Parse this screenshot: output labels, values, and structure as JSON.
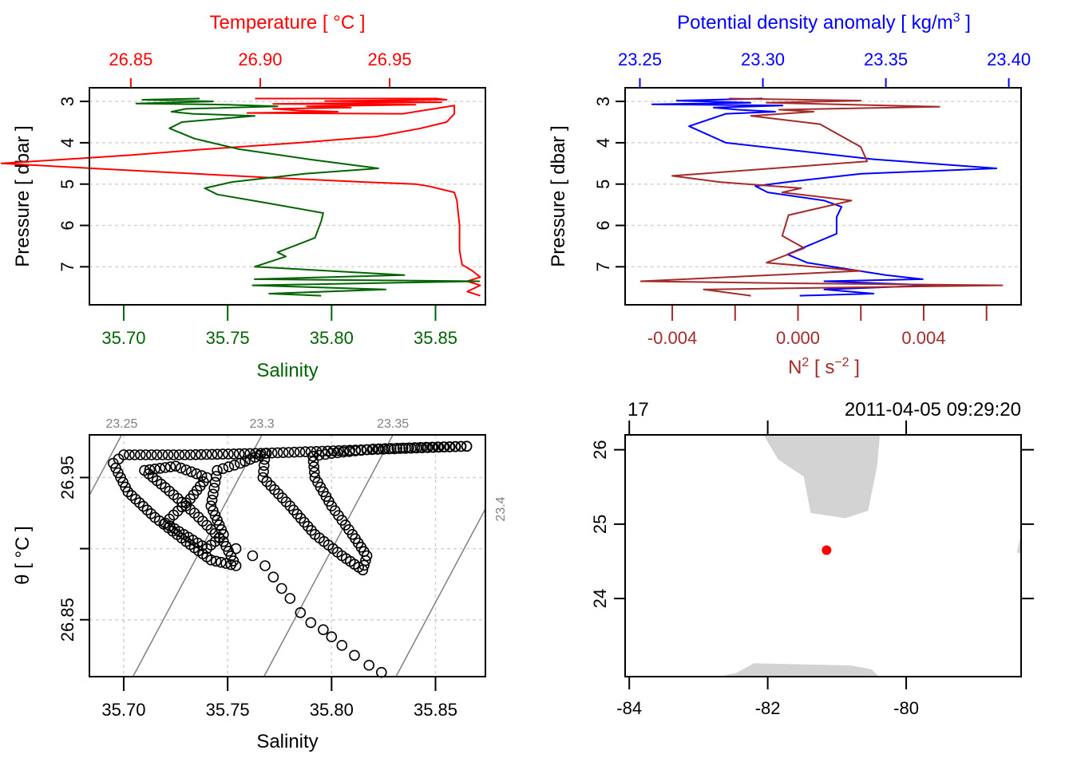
{
  "chart_data": [
    {
      "id": "ts_profile",
      "type": "line",
      "top_axis": {
        "label": "Temperature [ °C ]",
        "color": "#ff0000",
        "ticks": [
          26.85,
          26.9,
          26.95
        ],
        "tick_labels": [
          "26.85",
          "26.90",
          "26.95"
        ],
        "range": [
          26.834,
          26.987
        ]
      },
      "bottom_axis": {
        "label": "Salinity",
        "color": "#006400",
        "ticks": [
          35.7,
          35.75,
          35.8,
          35.85
        ],
        "tick_labels": [
          "35.70",
          "35.75",
          "35.80",
          "35.85"
        ],
        "range": [
          35.6835,
          35.874
        ]
      },
      "left_axis": {
        "label": "Pressure [ dbar ]",
        "ticks": [
          3,
          4,
          5,
          6,
          7
        ],
        "tick_labels": [
          "3",
          "4",
          "5",
          "6",
          "7"
        ],
        "range": [
          7.92,
          2.67
        ],
        "reversed": true
      },
      "grid": true,
      "series": [
        {
          "name": "Temperature",
          "color": "#ff0000",
          "points": [
            [
              26.898,
              2.93
            ],
            [
              26.968,
              2.93
            ],
            [
              26.972,
              2.96
            ],
            [
              26.925,
              2.99
            ],
            [
              26.97,
              3.02
            ],
            [
              26.905,
              3.06
            ],
            [
              26.96,
              3.08
            ],
            [
              26.918,
              3.12
            ],
            [
              26.935,
              3.15
            ],
            [
              26.905,
              3.18
            ],
            [
              26.915,
              3.22
            ],
            [
              26.93,
              3.25
            ],
            [
              26.895,
              3.28
            ],
            [
              26.955,
              3.3
            ],
            [
              26.975,
              3.1
            ],
            [
              26.975,
              3.3
            ],
            [
              26.972,
              3.5
            ],
            [
              26.962,
              3.65
            ],
            [
              26.945,
              3.85
            ],
            [
              26.915,
              4.0
            ],
            [
              26.88,
              4.15
            ],
            [
              26.85,
              4.3
            ],
            [
              26.8,
              4.5
            ],
            [
              26.838,
              4.63
            ],
            [
              26.86,
              4.7
            ],
            [
              26.905,
              4.85
            ],
            [
              26.94,
              4.95
            ],
            [
              26.96,
              5.0
            ],
            [
              26.965,
              5.05
            ],
            [
              26.975,
              5.2
            ],
            [
              26.976,
              5.4
            ],
            [
              26.977,
              6.0
            ],
            [
              26.977,
              6.6
            ],
            [
              26.978,
              6.95
            ],
            [
              26.982,
              7.1
            ],
            [
              26.985,
              7.25
            ],
            [
              26.98,
              7.35
            ],
            [
              26.985,
              7.45
            ],
            [
              26.98,
              7.6
            ],
            [
              26.985,
              7.7
            ]
          ]
        },
        {
          "name": "Salinity",
          "color": "#006400",
          "points": [
            [
              35.7365,
              2.93
            ],
            [
              35.709,
              2.96
            ],
            [
              35.743,
              3.0
            ],
            [
              35.706,
              3.05
            ],
            [
              35.75,
              3.08
            ],
            [
              35.774,
              3.12
            ],
            [
              35.73,
              3.18
            ],
            [
              35.723,
              3.25
            ],
            [
              35.733,
              3.3
            ],
            [
              35.763,
              3.35
            ],
            [
              35.728,
              3.5
            ],
            [
              35.722,
              3.65
            ],
            [
              35.734,
              3.9
            ],
            [
              35.755,
              4.15
            ],
            [
              35.789,
              4.4
            ],
            [
              35.8225,
              4.62
            ],
            [
              35.787,
              4.75
            ],
            [
              35.752,
              4.95
            ],
            [
              35.739,
              5.1
            ],
            [
              35.745,
              5.25
            ],
            [
              35.768,
              5.45
            ],
            [
              35.796,
              5.7
            ],
            [
              35.795,
              5.9
            ],
            [
              35.792,
              6.3
            ],
            [
              35.774,
              6.65
            ],
            [
              35.778,
              6.75
            ],
            [
              35.763,
              7.0
            ],
            [
              35.835,
              7.2
            ],
            [
              35.763,
              7.3
            ],
            [
              35.871,
              7.35
            ],
            [
              35.762,
              7.45
            ],
            [
              35.826,
              7.55
            ],
            [
              35.77,
              7.65
            ],
            [
              35.795,
              7.7
            ]
          ]
        }
      ]
    },
    {
      "id": "density_n2_profile",
      "type": "line",
      "top_axis": {
        "label": "Potential density anomaly [ kg/m³ ]",
        "color": "#0000ff",
        "ticks": [
          23.25,
          23.3,
          23.35,
          23.4
        ],
        "tick_labels": [
          "23.25",
          "23.30",
          "23.35",
          "23.40"
        ],
        "range": [
          23.244,
          23.405
        ]
      },
      "bottom_axis": {
        "label": "N² [ s⁻² ]",
        "color": "#a52a2a",
        "ticks": [
          -0.004,
          -0.002,
          0.0,
          0.002,
          0.004,
          0.006
        ],
        "tick_labels": [
          "-0.004",
          "",
          "0.000",
          "",
          "0.004",
          ""
        ],
        "range": [
          -0.0055,
          0.0071
        ]
      },
      "left_axis": {
        "label": "Pressure [ dbar ]",
        "ticks": [
          3,
          4,
          5,
          6,
          7
        ],
        "tick_labels": [
          "3",
          "4",
          "5",
          "6",
          "7"
        ],
        "range": [
          7.92,
          2.67
        ],
        "reversed": true
      },
      "grid": true,
      "series": [
        {
          "name": "Potential density anomaly",
          "color": "#0000ff",
          "points": [
            [
              23.3,
              2.93
            ],
            [
              23.265,
              2.98
            ],
            [
              23.295,
              3.03
            ],
            [
              23.255,
              3.07
            ],
            [
              23.308,
              3.1
            ],
            [
              23.28,
              3.15
            ],
            [
              23.29,
              3.2
            ],
            [
              23.305,
              3.25
            ],
            [
              23.285,
              3.3
            ],
            [
              23.27,
              3.6
            ],
            [
              23.285,
              4.0
            ],
            [
              23.345,
              4.4
            ],
            [
              23.395,
              4.62
            ],
            [
              23.34,
              4.75
            ],
            [
              23.31,
              4.95
            ],
            [
              23.297,
              5.05
            ],
            [
              23.302,
              5.2
            ],
            [
              23.325,
              5.4
            ],
            [
              23.332,
              5.55
            ],
            [
              23.33,
              5.8
            ],
            [
              23.33,
              6.2
            ],
            [
              23.31,
              6.7
            ],
            [
              23.318,
              6.9
            ],
            [
              23.35,
              7.2
            ],
            [
              23.365,
              7.3
            ],
            [
              23.325,
              7.35
            ],
            [
              23.37,
              7.45
            ],
            [
              23.325,
              7.55
            ],
            [
              23.345,
              7.65
            ],
            [
              23.315,
              7.7
            ]
          ]
        },
        {
          "name": "N2",
          "color": "#a52a2a",
          "points": [
            [
              -0.0022,
              2.93
            ],
            [
              0.002,
              2.98
            ],
            [
              -0.001,
              3.03
            ],
            [
              0.0045,
              3.13
            ],
            [
              -0.0006,
              3.2
            ],
            [
              0.0005,
              3.25
            ],
            [
              -0.0015,
              3.35
            ],
            [
              0.0007,
              3.55
            ],
            [
              0.002,
              4.1
            ],
            [
              0.0022,
              4.45
            ],
            [
              -0.004,
              4.8
            ],
            [
              -0.0025,
              4.95
            ],
            [
              0.0001,
              5.1
            ],
            [
              -0.0005,
              5.2
            ],
            [
              0.0017,
              5.4
            ],
            [
              -0.0003,
              5.75
            ],
            [
              -0.0005,
              6.25
            ],
            [
              0.0002,
              6.55
            ],
            [
              -0.001,
              6.9
            ],
            [
              0.002,
              7.1
            ],
            [
              -0.005,
              7.35
            ],
            [
              0.0,
              7.4
            ],
            [
              0.0065,
              7.45
            ],
            [
              -0.003,
              7.55
            ],
            [
              -0.0015,
              7.7
            ]
          ]
        }
      ]
    },
    {
      "id": "ts_diagram",
      "type": "scatter",
      "xlabel": "Salinity",
      "ylabel": "θ [ °C ]",
      "x_ticks": [
        "35.70",
        "35.75",
        "35.80",
        "35.85"
      ],
      "x_tick_values": [
        35.7,
        35.75,
        35.8,
        35.85
      ],
      "y_ticks": [
        "26.85",
        "26.95"
      ],
      "y_tick_values": [
        26.85,
        26.9,
        26.95
      ],
      "xlim": [
        35.6835,
        35.874
      ],
      "ylim": [
        26.81,
        26.98
      ],
      "grid": true,
      "isopycnals": [
        {
          "label": "23.25",
          "sigma": 23.25
        },
        {
          "label": "23.3",
          "sigma": 23.3
        },
        {
          "label": "23.35",
          "sigma": 23.35
        },
        {
          "label": "23.4",
          "sigma": 23.4
        }
      ],
      "isopycnal_color": "#808080",
      "point_path": [
        [
          35.865,
          26.972
        ],
        [
          35.766,
          26.967
        ],
        [
          35.732,
          26.966
        ],
        [
          35.7,
          26.966
        ],
        [
          35.695,
          26.96
        ],
        [
          35.702,
          26.94
        ],
        [
          35.715,
          26.922
        ],
        [
          35.73,
          26.905
        ],
        [
          35.742,
          26.892
        ],
        [
          35.754,
          26.888
        ],
        [
          35.748,
          26.905
        ],
        [
          35.734,
          26.925
        ],
        [
          35.72,
          26.943
        ],
        [
          35.71,
          26.955
        ],
        [
          35.725,
          26.958
        ],
        [
          35.74,
          26.95
        ],
        [
          35.732,
          26.935
        ],
        [
          35.72,
          26.918
        ],
        [
          35.74,
          26.9
        ],
        [
          35.748,
          26.91
        ],
        [
          35.742,
          26.93
        ],
        [
          35.745,
          26.955
        ],
        [
          35.756,
          26.96
        ],
        [
          35.768,
          26.967
        ],
        [
          35.767,
          26.95
        ],
        [
          35.78,
          26.93
        ],
        [
          35.792,
          26.91
        ],
        [
          35.805,
          26.895
        ],
        [
          35.815,
          26.885
        ],
        [
          35.817,
          26.895
        ],
        [
          35.81,
          26.91
        ],
        [
          35.8,
          26.93
        ],
        [
          35.792,
          26.95
        ],
        [
          35.791,
          26.965
        ],
        [
          35.8,
          26.967
        ],
        [
          35.82,
          26.97
        ],
        [
          35.84,
          26.971
        ],
        [
          35.865,
          26.972
        ]
      ],
      "point_tail": [
        [
          35.754,
          26.9
        ],
        [
          35.762,
          26.895
        ],
        [
          35.768,
          26.888
        ],
        [
          35.772,
          26.88
        ],
        [
          35.776,
          26.872
        ],
        [
          35.78,
          26.865
        ],
        [
          35.785,
          26.855
        ],
        [
          35.79,
          26.848
        ],
        [
          35.796,
          26.843
        ],
        [
          35.8,
          26.838
        ],
        [
          35.805,
          26.832
        ],
        [
          35.811,
          26.825
        ],
        [
          35.818,
          26.818
        ],
        [
          35.824,
          26.813
        ]
      ],
      "marker": "open-circle",
      "marker_color": "#000000"
    },
    {
      "id": "station_map",
      "type": "scatter",
      "top_labels": {
        "left": "17",
        "right": "2011-04-05 09:29:20"
      },
      "x_ticks": [
        "-84",
        "-82",
        "-80"
      ],
      "x_tick_values": [
        -84,
        -82,
        -80
      ],
      "y_ticks": [
        "24",
        "25",
        "26"
      ],
      "y_tick_values": [
        24,
        25,
        26
      ],
      "xlim": [
        -84.06,
        -78.34
      ],
      "ylim": [
        22.95,
        26.2
      ],
      "land_color": "#d3d3d3",
      "station": {
        "lon": -81.15,
        "lat": 24.65,
        "color": "#ff0000"
      },
      "land_polygons": [
        [
          [
            -82.06,
            26.2
          ],
          [
            -81.85,
            25.87
          ],
          [
            -81.48,
            25.64
          ],
          [
            -81.38,
            25.15
          ],
          [
            -80.88,
            25.08
          ],
          [
            -80.55,
            25.18
          ],
          [
            -80.42,
            25.78
          ],
          [
            -80.38,
            26.2
          ]
        ],
        [
          [
            -82.7,
            22.95
          ],
          [
            -82.45,
            23.0
          ],
          [
            -82.2,
            23.13
          ],
          [
            -80.8,
            23.1
          ],
          [
            -80.5,
            23.05
          ],
          [
            -80.4,
            22.95
          ]
        ],
        [
          [
            -78.36,
            24.8
          ],
          [
            -78.34,
            24.8
          ],
          [
            -78.34,
            24.6
          ],
          [
            -78.4,
            24.62
          ]
        ]
      ]
    }
  ]
}
